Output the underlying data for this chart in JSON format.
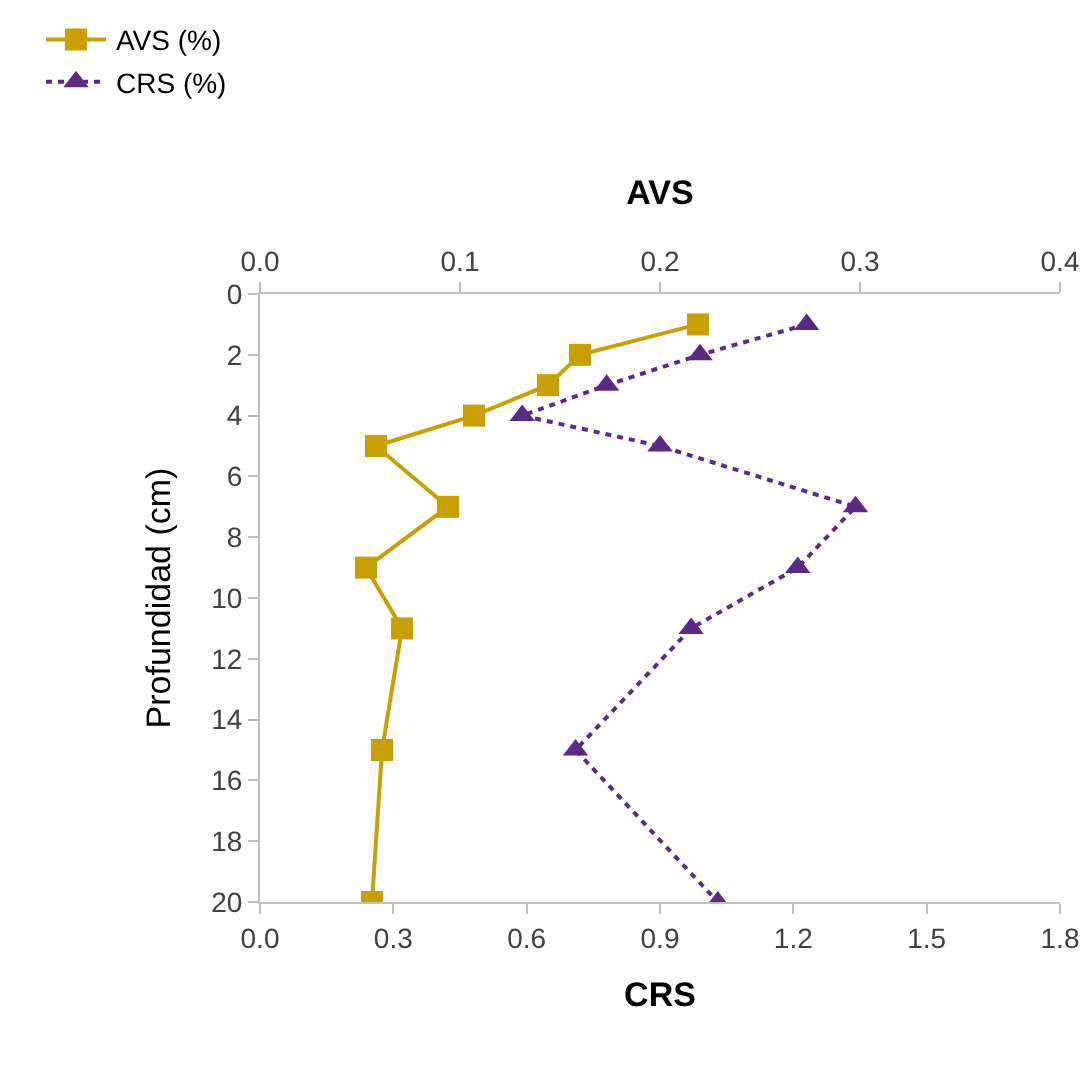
{
  "chart_data": {
    "type": "line",
    "xlabel": "CRS",
    "x2label": "AVS",
    "ylabel": "Profundidad (cm)",
    "xlim": [
      0,
      1.8
    ],
    "xticks": [
      {
        "value": 0,
        "label": "0.0"
      },
      {
        "value": 0.3,
        "label": "0.3"
      },
      {
        "value": 0.6,
        "label": "0.6"
      },
      {
        "value": 0.9,
        "label": "0.9"
      },
      {
        "value": 1.2,
        "label": "1.2"
      },
      {
        "value": 1.5,
        "label": "1.5"
      },
      {
        "value": 1.8,
        "label": "1.8"
      }
    ],
    "x2lim": [
      0,
      0.4
    ],
    "x2ticks": [
      {
        "value": 0,
        "label": "0.0"
      },
      {
        "value": 0.1,
        "label": "0.1"
      },
      {
        "value": 0.2,
        "label": "0.2"
      },
      {
        "value": 0.3,
        "label": "0.3"
      },
      {
        "value": 0.4,
        "label": "0.4"
      }
    ],
    "ylim": [
      20,
      0
    ],
    "yticks": [
      0,
      2,
      4,
      6,
      8,
      10,
      12,
      14,
      16,
      18,
      20
    ],
    "legend": "top left",
    "series": [
      {
        "name": "AVS (%)",
        "color": "#c9a000",
        "axis": "x2",
        "marker": "square",
        "line_style": "solid",
        "x": [
          0.219,
          0.16,
          0.144,
          0.107,
          0.058,
          0.094,
          0.053,
          0.071,
          0.061,
          0.056
        ],
        "values": [
          1,
          2,
          3,
          4,
          5,
          7,
          9,
          11,
          15,
          20
        ]
      },
      {
        "name": "CRS (%)",
        "color": "#5b2a86",
        "marker": "triangle",
        "line_style": "dotted",
        "x": [
          1.23,
          0.99,
          0.78,
          0.59,
          0.9,
          1.34,
          1.21,
          0.97,
          0.71,
          1.03
        ],
        "values": [
          1,
          2,
          3,
          4,
          5,
          7,
          9,
          11,
          15,
          20
        ]
      }
    ]
  }
}
